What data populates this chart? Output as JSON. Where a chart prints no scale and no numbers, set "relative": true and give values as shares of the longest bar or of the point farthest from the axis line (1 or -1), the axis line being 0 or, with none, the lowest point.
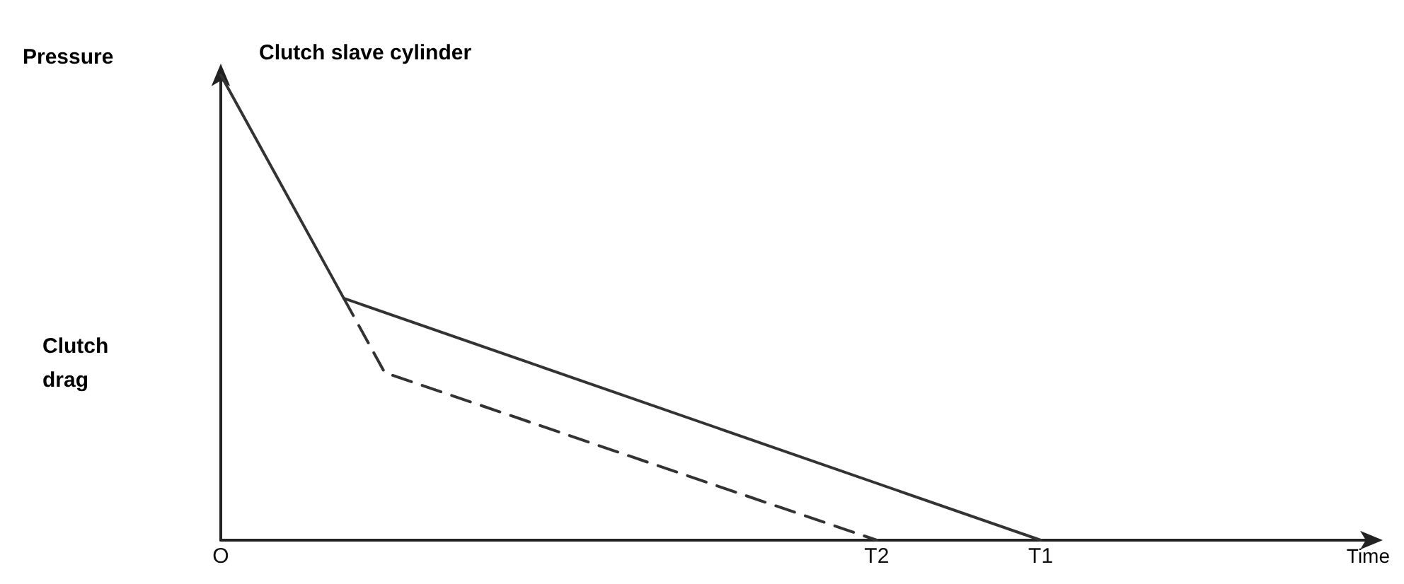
{
  "chart_data": {
    "type": "line",
    "title": "Clutch slave cylinder",
    "ylabel": "Pressure",
    "xlabel": "Time",
    "annotations": [
      "Clutch drag"
    ],
    "relative": true,
    "categories": [
      "O",
      null,
      null,
      null,
      null,
      null,
      null,
      null,
      null,
      null,
      null,
      null,
      null,
      null,
      null,
      null,
      "T2",
      null,
      null,
      null,
      "T1",
      null,
      null,
      null,
      null,
      null,
      null,
      null,
      null
    ],
    "series": [
      {
        "color": "#333333",
        "line_style": "solid",
        "values": [
          1,
          null,
          null,
          0.52,
          null,
          null,
          null,
          null,
          null,
          null,
          null,
          null,
          null,
          null,
          null,
          null,
          null,
          null,
          null,
          null,
          0,
          null,
          null,
          null,
          null,
          null,
          null,
          null,
          null
        ]
      },
      {
        "color": "#333333",
        "line_style": "dashed",
        "values": [
          null,
          null,
          null,
          0.52,
          0.36,
          null,
          null,
          null,
          null,
          null,
          null,
          null,
          null,
          null,
          null,
          null,
          0,
          null,
          null,
          null,
          null,
          null,
          null,
          null,
          null,
          null,
          null,
          null,
          null
        ]
      }
    ],
    "grid": false,
    "marker": "none"
  }
}
